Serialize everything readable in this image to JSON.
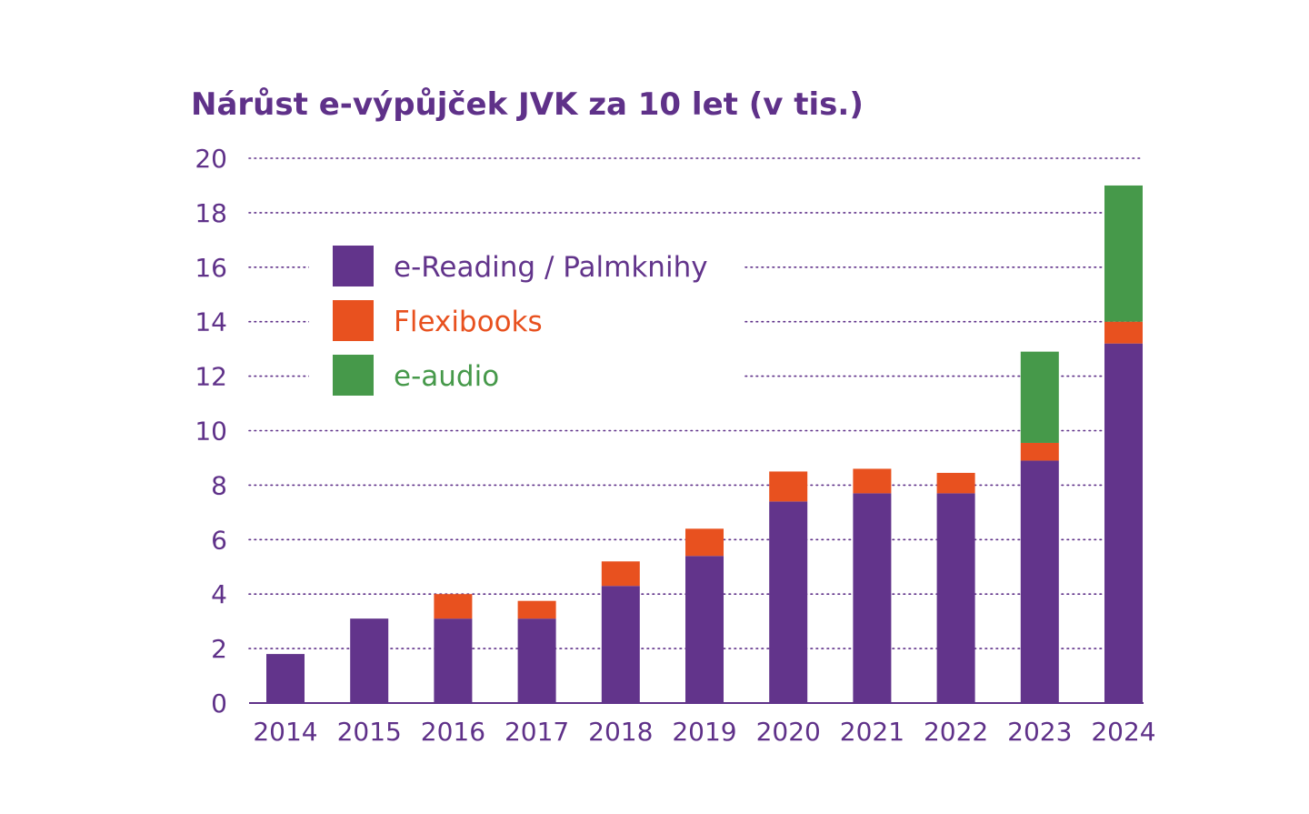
{
  "chart_data": {
    "type": "bar",
    "stacked": true,
    "title": "Nárůst e-výpůjček JVK za 10 let (v tis.)",
    "xlabel": "",
    "ylabel": "",
    "ylim": [
      0,
      20
    ],
    "yticks": [
      "0",
      "2",
      "4",
      "6",
      "8",
      "10",
      "12",
      "14",
      "16",
      "18",
      "20"
    ],
    "grid": "horizontal-dotted",
    "legend_position": "top-left",
    "categories": [
      "2014",
      "2015",
      "2016",
      "2017",
      "2018",
      "2019",
      "2020",
      "2021",
      "2022",
      "2023",
      "2024"
    ],
    "series": [
      {
        "name": "e-Reading / Palmknihy",
        "color": "#62348b",
        "values": [
          1.8,
          3.1,
          3.1,
          3.1,
          4.3,
          5.4,
          7.4,
          7.7,
          7.7,
          8.9,
          13.2
        ]
      },
      {
        "name": "Flexibooks",
        "color": "#e8511f",
        "values": [
          0,
          0,
          0.9,
          0.65,
          0.9,
          1.0,
          1.1,
          0.9,
          0.75,
          0.65,
          0.8
        ]
      },
      {
        "name": "e-audio",
        "color": "#46994a",
        "values": [
          0,
          0,
          0,
          0,
          0,
          0,
          0,
          0,
          0,
          3.35,
          5.0
        ]
      }
    ],
    "text_color": "#5f3189",
    "grid_color": "#5f3189"
  }
}
